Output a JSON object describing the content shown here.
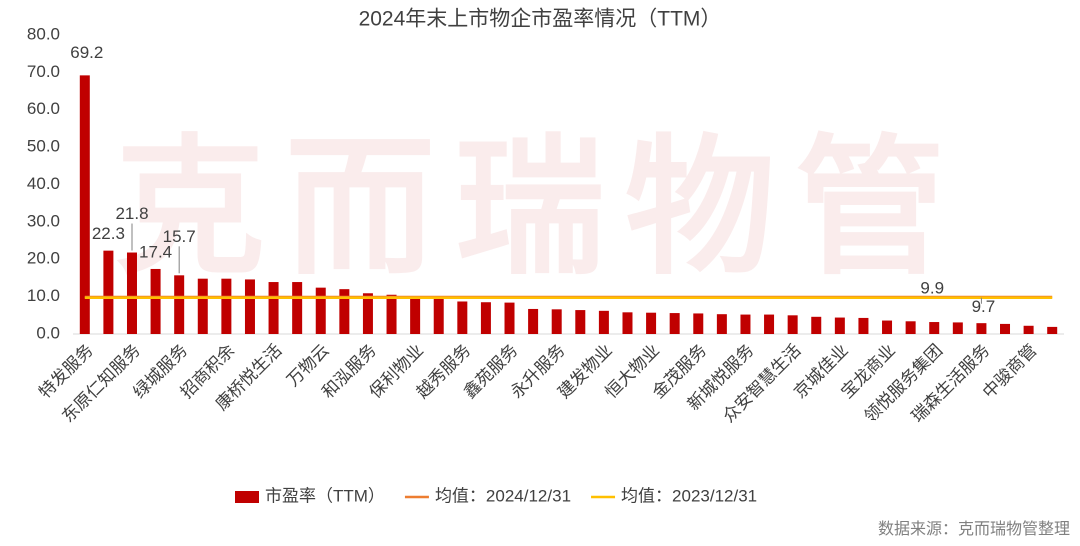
{
  "chart_data": {
    "type": "bar",
    "title": "2024年末上市物企市盈率情况（TTM）",
    "watermark": "克而瑞物管",
    "source": "数据来源：克而瑞物管整理",
    "categories": [
      "特发服务",
      null,
      "东原仁知服务",
      null,
      "绿城服务",
      null,
      "招商积余",
      null,
      "康桥悦生活",
      null,
      "万物云",
      null,
      "和泓服务",
      null,
      "保利物业",
      null,
      "越秀服务",
      null,
      "鑫苑服务",
      null,
      "永升服务",
      null,
      "建发物业",
      null,
      "恒大物业",
      null,
      "金茂服务",
      null,
      "新城悦服务",
      null,
      "众安智慧生活",
      null,
      "京城佳业",
      null,
      "宝龙商业",
      null,
      "领悦服务集团",
      null,
      "瑞森生活服务",
      null,
      "中骏商管",
      null
    ],
    "series": [
      {
        "name": "市盈率（TTM）",
        "color": "#c00000",
        "values": [
          69.2,
          22.3,
          21.8,
          17.4,
          15.7,
          14.8,
          14.8,
          14.6,
          13.9,
          13.9,
          12.4,
          12.0,
          10.9,
          10.5,
          10.0,
          9.8,
          8.7,
          8.5,
          8.4,
          6.7,
          6.6,
          6.4,
          6.2,
          5.8,
          5.7,
          5.6,
          5.5,
          5.3,
          5.2,
          5.2,
          5.0,
          4.6,
          4.4,
          4.3,
          3.6,
          3.4,
          3.2,
          3.1,
          2.9,
          2.7,
          2.2,
          1.9
        ],
        "value_labels": [
          "69.2",
          "22.3",
          "21.8",
          "17.4",
          "15.7",
          null,
          null,
          null,
          null,
          null,
          null,
          null,
          null,
          null,
          null,
          null,
          null,
          null,
          null,
          null,
          null,
          null,
          null,
          null,
          null,
          null,
          null,
          null,
          null,
          null,
          null,
          null,
          null,
          null,
          null,
          null,
          null,
          null,
          null,
          null,
          null,
          null
        ]
      }
    ],
    "mean_lines": [
      {
        "name": "均值：2024/12/31",
        "color": "#ed7d31",
        "value": 9.9,
        "value_label": "9.9"
      },
      {
        "name": "均值：2023/12/31",
        "color": "#ffc000",
        "value": 9.7,
        "value_label": "9.7"
      }
    ],
    "ylim": [
      0,
      80
    ],
    "yticks": [
      {
        "value": 0,
        "label": "0.0"
      },
      {
        "value": 10,
        "label": "10.0"
      },
      {
        "value": 20,
        "label": "20.0"
      },
      {
        "value": 30,
        "label": "30.0"
      },
      {
        "value": 40,
        "label": "40.0"
      },
      {
        "value": 50,
        "label": "50.0"
      },
      {
        "value": 60,
        "label": "60.0"
      },
      {
        "value": 70,
        "label": "70.0"
      },
      {
        "value": 80,
        "label": "80.0"
      }
    ],
    "grid": false
  }
}
